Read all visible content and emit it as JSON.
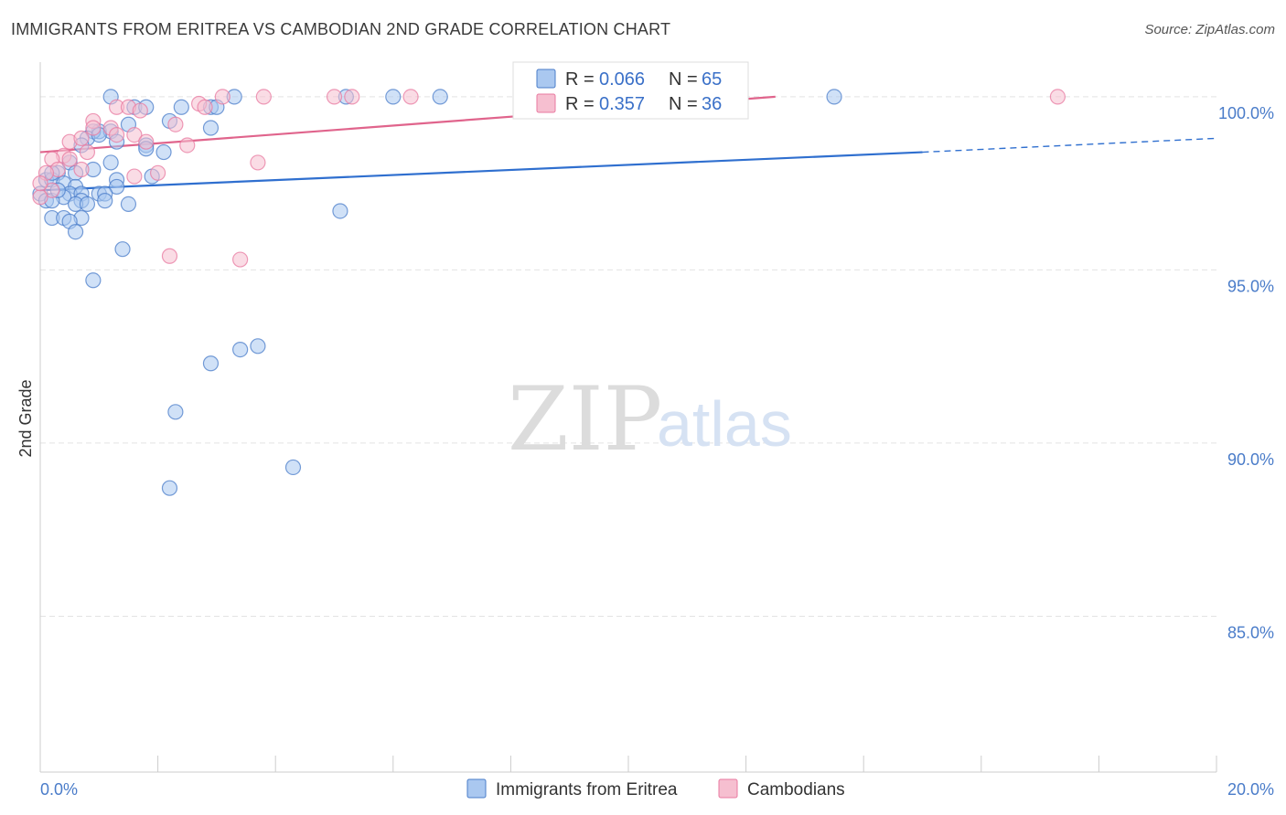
{
  "title": "IMMIGRANTS FROM ERITREA VS CAMBODIAN 2ND GRADE CORRELATION CHART",
  "source": "Source: ZipAtlas.com",
  "watermark": {
    "zip": "ZIP",
    "atlas": "atlas"
  },
  "colors": {
    "blue": "#4a7cc9",
    "blue_fill": "#aac8f0",
    "blue_line": "#2f6fcf",
    "pink": "#e87aa0",
    "pink_fill": "#f6bfd0",
    "pink_line": "#e0648c"
  },
  "legend": {
    "r_label": "R =",
    "n_label": "N =",
    "rows": [
      {
        "r": "0.066",
        "n": "65"
      },
      {
        "r": "0.357",
        "n": "36"
      }
    ]
  },
  "bottom_legend": [
    "Immigrants from Eritrea",
    "Cambodians"
  ],
  "chart_data": {
    "type": "scatter",
    "title": "IMMIGRANTS FROM ERITREA VS CAMBODIAN 2ND GRADE CORRELATION CHART",
    "xlabel": "",
    "ylabel": "2nd Grade",
    "xlim": [
      0,
      20
    ],
    "ylim": [
      80.5,
      101
    ],
    "x_tick_labels": [
      "0.0%",
      "20.0%"
    ],
    "y_ticks": [
      100,
      95,
      90,
      85
    ],
    "y_tick_labels": [
      "100.0%",
      "95.0%",
      "90.0%",
      "85.0%"
    ],
    "grid": true,
    "legend_position": "top-center",
    "series": [
      {
        "name": "Immigrants from Eritrea",
        "R": 0.066,
        "N": 65,
        "trend": {
          "x": [
            0,
            15
          ],
          "y": [
            97.3,
            98.4
          ],
          "dashed_to": [
            20,
            98.8
          ]
        },
        "points": [
          [
            1.2,
            100
          ],
          [
            3.3,
            100
          ],
          [
            5.2,
            100
          ],
          [
            6.0,
            100
          ],
          [
            6.8,
            100
          ],
          [
            13.5,
            100
          ],
          [
            1.6,
            99.7
          ],
          [
            1.8,
            99.7
          ],
          [
            2.4,
            99.7
          ],
          [
            2.9,
            99.7
          ],
          [
            3.0,
            99.7
          ],
          [
            2.2,
            99.3
          ],
          [
            1.5,
            99.2
          ],
          [
            2.9,
            99.1
          ],
          [
            1.0,
            99.0
          ],
          [
            1.2,
            99.0
          ],
          [
            0.9,
            99.0
          ],
          [
            0.8,
            98.8
          ],
          [
            1.3,
            98.7
          ],
          [
            0.7,
            98.6
          ],
          [
            1.8,
            98.6
          ],
          [
            1.8,
            98.5
          ],
          [
            2.1,
            98.4
          ],
          [
            0.5,
            98.1
          ],
          [
            1.2,
            98.1
          ],
          [
            0.9,
            97.9
          ],
          [
            0.3,
            97.8
          ],
          [
            0.6,
            97.8
          ],
          [
            1.9,
            97.7
          ],
          [
            0.1,
            97.6
          ],
          [
            0.2,
            97.6
          ],
          [
            1.3,
            97.6
          ],
          [
            0.4,
            97.5
          ],
          [
            0.6,
            97.4
          ],
          [
            1.3,
            97.4
          ],
          [
            0.0,
            97.2
          ],
          [
            0.5,
            97.2
          ],
          [
            0.7,
            97.2
          ],
          [
            1.0,
            97.2
          ],
          [
            1.1,
            97.2
          ],
          [
            0.4,
            97.1
          ],
          [
            0.1,
            97.0
          ],
          [
            0.2,
            97.0
          ],
          [
            0.7,
            97.0
          ],
          [
            1.1,
            97.0
          ],
          [
            0.6,
            96.9
          ],
          [
            1.5,
            96.9
          ],
          [
            5.1,
            96.7
          ],
          [
            0.2,
            96.5
          ],
          [
            0.4,
            96.5
          ],
          [
            0.7,
            96.5
          ],
          [
            0.5,
            96.4
          ],
          [
            0.6,
            96.1
          ],
          [
            1.4,
            95.6
          ],
          [
            0.9,
            94.7
          ],
          [
            3.7,
            92.8
          ],
          [
            3.4,
            92.7
          ],
          [
            2.9,
            92.3
          ],
          [
            2.3,
            90.9
          ],
          [
            4.3,
            89.3
          ],
          [
            2.2,
            88.7
          ],
          [
            0.3,
            97.3
          ],
          [
            0.8,
            96.9
          ],
          [
            1.0,
            98.9
          ],
          [
            0.2,
            97.8
          ]
        ]
      },
      {
        "name": "Cambodians",
        "R": 0.357,
        "N": 36,
        "trend": {
          "x": [
            0,
            12.5
          ],
          "y": [
            98.4,
            100.0
          ]
        },
        "points": [
          [
            3.1,
            100
          ],
          [
            3.8,
            100
          ],
          [
            5.0,
            100
          ],
          [
            5.3,
            100
          ],
          [
            6.3,
            100
          ],
          [
            17.3,
            100
          ],
          [
            2.7,
            99.8
          ],
          [
            1.3,
            99.7
          ],
          [
            1.5,
            99.7
          ],
          [
            1.7,
            99.6
          ],
          [
            2.8,
            99.7
          ],
          [
            0.9,
            99.3
          ],
          [
            2.3,
            99.2
          ],
          [
            1.2,
            99.1
          ],
          [
            0.9,
            99.1
          ],
          [
            1.3,
            98.9
          ],
          [
            1.6,
            98.9
          ],
          [
            0.5,
            98.7
          ],
          [
            0.7,
            98.8
          ],
          [
            1.8,
            98.7
          ],
          [
            2.5,
            98.6
          ],
          [
            0.8,
            98.4
          ],
          [
            0.4,
            98.3
          ],
          [
            0.2,
            98.2
          ],
          [
            0.5,
            98.2
          ],
          [
            3.7,
            98.1
          ],
          [
            0.7,
            97.9
          ],
          [
            0.3,
            97.9
          ],
          [
            0.1,
            97.8
          ],
          [
            2.0,
            97.8
          ],
          [
            1.6,
            97.7
          ],
          [
            0.2,
            97.3
          ],
          [
            0.0,
            97.1
          ],
          [
            2.2,
            95.4
          ],
          [
            3.4,
            95.3
          ],
          [
            0.0,
            97.5
          ]
        ]
      }
    ]
  }
}
